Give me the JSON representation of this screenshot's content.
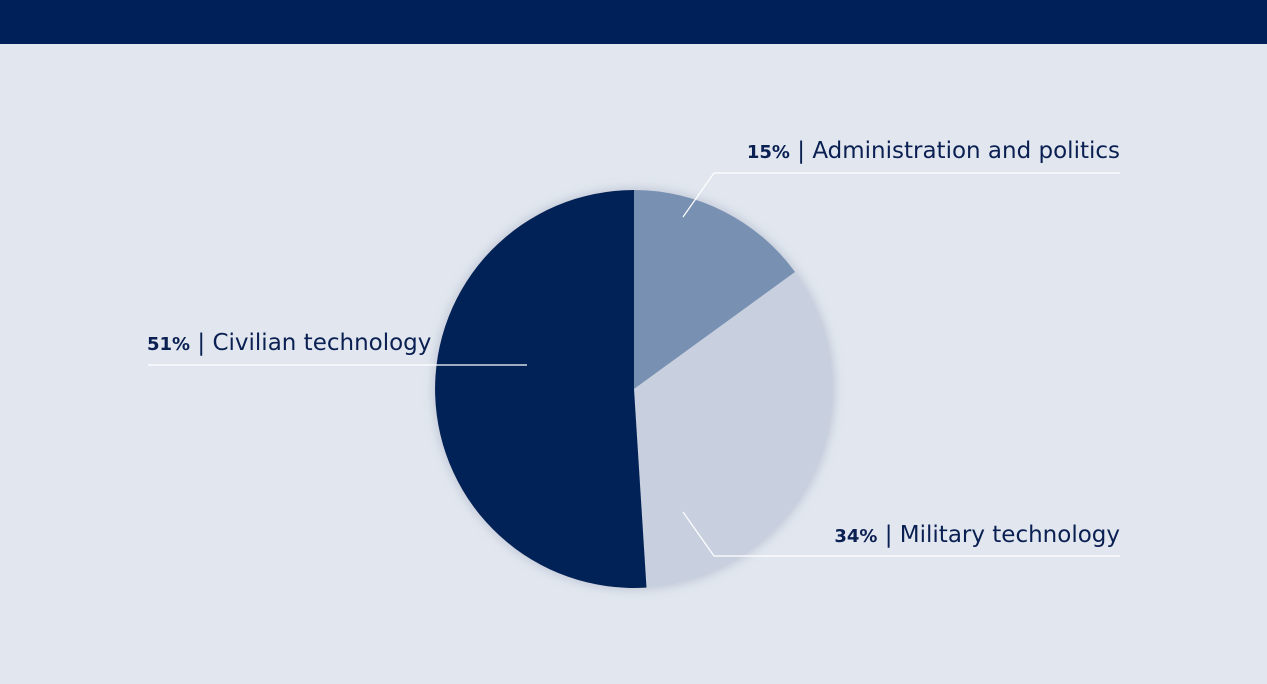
{
  "colors": {
    "top_bar": "#00205a",
    "background": "#e2e7ef",
    "label_text": "#0a1f52",
    "leader_line": "#ffffff"
  },
  "chart_data": {
    "type": "pie",
    "start_angle_deg": 0,
    "direction": "clockwise",
    "slices": [
      {
        "label": "Administration and politics",
        "pct_text": "15%",
        "value": 15,
        "color": "#7890b2"
      },
      {
        "label": "Military technology",
        "pct_text": "34%",
        "value": 34,
        "color": "#c8d0df"
      },
      {
        "label": "Civilian technology",
        "pct_text": "51%",
        "value": 51,
        "color": "#002056"
      }
    ]
  }
}
